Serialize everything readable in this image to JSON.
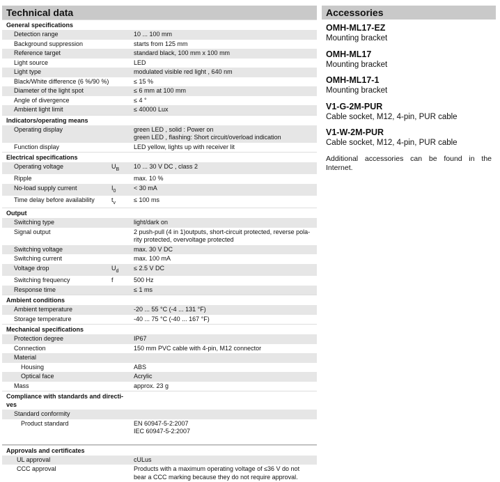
{
  "left": {
    "title": "Technical data",
    "sections": [
      {
        "title": "General specifications",
        "rows": [
          {
            "label": "Detection range",
            "value": [
              "10 ... 100 mm"
            ]
          },
          {
            "label": "Background suppression",
            "value": [
              "starts from 125 mm"
            ]
          },
          {
            "label": "Reference target",
            "value": [
              "standard black, 100 mm x 100 mm"
            ]
          },
          {
            "label": "Light source",
            "value": [
              "LED"
            ]
          },
          {
            "label": "Light type",
            "value": [
              "modulated visible red light , 640 nm"
            ]
          },
          {
            "label": "Black/White difference (6 %/90 %)",
            "value": [
              "≤ 15  %"
            ]
          },
          {
            "label": "Diameter of the light spot",
            "value": [
              "≤ 6 mm at 100 mm"
            ]
          },
          {
            "label": "Angle of divergence",
            "value": [
              "≤ 4 °"
            ]
          },
          {
            "label": "Ambient light limit",
            "value": [
              "≤ 40000 Lux"
            ]
          }
        ]
      },
      {
        "title": "Indicators/operating means",
        "rows": [
          {
            "label": "Operating display",
            "value": [
              "green LED , solid : Power on",
              "green LED , flashing: Short circuit/overload indication"
            ]
          },
          {
            "label": "Function display",
            "value": [
              "LED yellow, lights up with receiver lit"
            ]
          }
        ]
      },
      {
        "title": "Electrical specifications",
        "rows": [
          {
            "label": "Operating voltage",
            "symbol": {
              "base": "U",
              "sub": "B"
            },
            "value": [
              "10 ... 30 V DC , class 2"
            ]
          },
          {
            "label": "Ripple",
            "value": [
              "max. 10  %"
            ]
          },
          {
            "label": "No-load supply current",
            "symbol": {
              "base": "I",
              "sub": "0"
            },
            "value": [
              "< 30 mA"
            ]
          },
          {
            "label": "Time delay before availability",
            "symbol": {
              "base": "t",
              "sub": "v"
            },
            "value": [
              "≤ 100 ms"
            ]
          }
        ]
      },
      {
        "title": "Output",
        "rows": [
          {
            "label": "Switching type",
            "value": [
              "light/dark on"
            ]
          },
          {
            "label": "Signal output",
            "value": [
              "2 push-pull (4 in 1)outputs, short-circuit protected, reverse pola-",
              "rity protected, overvoltage protected"
            ]
          },
          {
            "label": "Switching voltage",
            "value": [
              "max. 30 V DC"
            ]
          },
          {
            "label": "Switching current",
            "value": [
              "max. 100 mA"
            ]
          },
          {
            "label": "Voltage drop",
            "symbol": {
              "base": "U",
              "sub": "d"
            },
            "value": [
              "≤ 2.5 V DC"
            ]
          },
          {
            "label": "Switching frequency",
            "symbol": "f",
            "value": [
              "500 Hz"
            ]
          },
          {
            "label": "Response time",
            "value": [
              "≤ 1 ms"
            ]
          }
        ]
      },
      {
        "title": "Ambient conditions",
        "rows": [
          {
            "label": "Ambient temperature",
            "value": [
              "-20 ... 55 °C (-4 ... 131 °F)"
            ]
          },
          {
            "label": "Storage temperature",
            "value": [
              "-40 ... 75 °C (-40 ... 167 °F)"
            ]
          }
        ]
      },
      {
        "title": "Mechanical specifications",
        "rows": [
          {
            "label": "Protection degree",
            "value": [
              "IP67"
            ]
          },
          {
            "label": "Connection",
            "value": [
              "150 mm PVC cable with 4-pin, M12 connector"
            ]
          },
          {
            "label": "Material",
            "children": [
              {
                "label": "Housing",
                "value": [
                  "ABS"
                ]
              },
              {
                "label": "Optical face",
                "value": [
                  "Acrylic"
                ]
              }
            ]
          },
          {
            "label": "Mass",
            "value": [
              "approx. 23 g"
            ]
          }
        ]
      },
      {
        "title": [
          "Compliance with standards and directi-",
          "ves"
        ],
        "rows": [
          {
            "label": "Standard conformity",
            "children": [
              {
                "label": "Product standard",
                "value": [
                  "EN 60947-5-2:2007",
                  "IEC 60947-5-2:2007"
                ]
              }
            ]
          }
        ]
      },
      {
        "title": "Approvals and certificates",
        "rows": [
          {
            "label": "UL approval",
            "value": [
              "cULus"
            ]
          },
          {
            "label": "CCC approval",
            "value": [
              "Products with a maximum operating voltage of ≤36 V do not",
              "bear a CCC marking because they do not require approval."
            ]
          }
        ]
      }
    ]
  },
  "right": {
    "title": "Accessories",
    "items": [
      {
        "name": "OMH-ML17-EZ",
        "description": "Mounting bracket"
      },
      {
        "name": "OMH-ML17",
        "description": "Mounting bracket"
      },
      {
        "name": "OMH-ML17-1",
        "description": "Mounting bracket"
      },
      {
        "name": "V1-G-2M-PUR",
        "description": "Cable socket, M12, 4-pin, PUR cable"
      },
      {
        "name": "V1-W-2M-PUR",
        "description": "Cable socket, M12, 4-pin, PUR cable"
      }
    ],
    "note": "Additional accessories can be found in the Internet."
  }
}
